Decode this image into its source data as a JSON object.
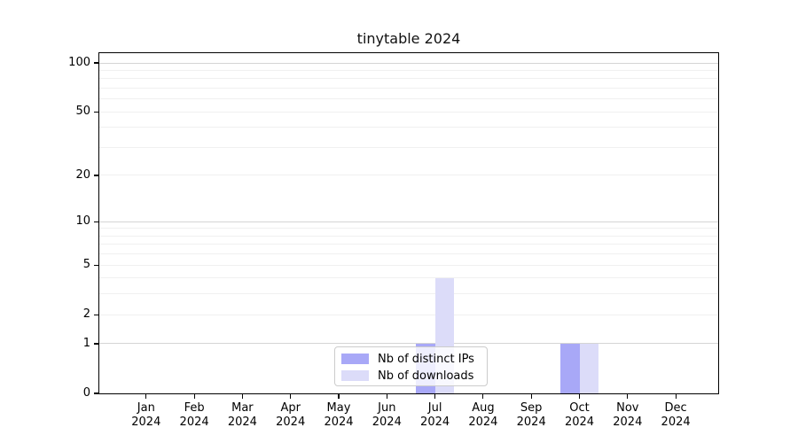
{
  "title": "tinytable 2024",
  "chart_data": {
    "type": "bar",
    "title": "tinytable 2024",
    "categories": [
      "Jan",
      "Feb",
      "Mar",
      "Apr",
      "May",
      "Jun",
      "Jul",
      "Aug",
      "Sep",
      "Oct",
      "Nov",
      "Dec"
    ],
    "category_year": "2024",
    "series": [
      {
        "name": "Nb of distinct IPs",
        "color": "#a8a8f7",
        "values": [
          0,
          0,
          0,
          0,
          0,
          0,
          1,
          0,
          0,
          1,
          0,
          0
        ]
      },
      {
        "name": "Nb of downloads",
        "color": "#dcdcf9",
        "values": [
          0,
          0,
          0,
          0,
          0,
          0,
          4,
          0,
          0,
          1,
          0,
          0
        ]
      }
    ],
    "xlabel": "",
    "ylabel": "",
    "y_axis": {
      "scale": "log1p",
      "tick_values": [
        0,
        1,
        2,
        5,
        10,
        20,
        50,
        100
      ],
      "tick_labels": [
        "0",
        "1",
        "2",
        "5",
        "10",
        "20",
        "50",
        "100"
      ],
      "major_gridlines": [
        1,
        10,
        100
      ],
      "minor_gridlines": [
        2,
        3,
        4,
        5,
        6,
        7,
        8,
        9,
        20,
        30,
        40,
        50,
        60,
        70,
        80,
        90
      ],
      "range_top_value": 115
    },
    "grid": "horizontal",
    "legend": {
      "position": "bottom-center",
      "entries": [
        "Nb of distinct IPs",
        "Nb of downloads"
      ]
    },
    "colors": {
      "background": "#ffffff",
      "spine": "#000000",
      "text": "#000000",
      "major_grid": "#d4d4d4",
      "minor_grid": "#f0f0f0",
      "legend_border": "#cccccc",
      "legend_background": "rgba(255,255,255,0.8)"
    }
  }
}
